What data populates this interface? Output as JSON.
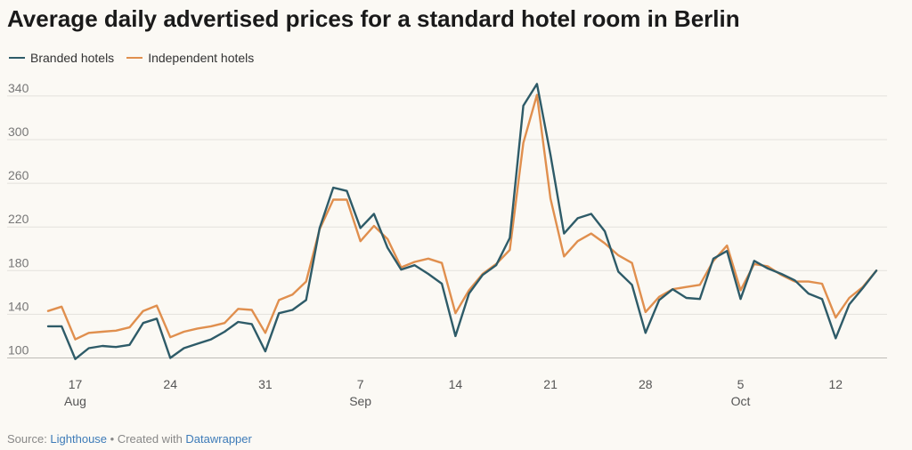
{
  "title": "Average daily advertised prices for a standard hotel room in Berlin",
  "footer": {
    "source_prefix": "Source: ",
    "source_link": "Lighthouse",
    "separator": " • Created with ",
    "tool_link": "Datawrapper"
  },
  "colors": {
    "branded": "#2e5b68",
    "independent": "#e08f4e",
    "grid": "#e3e1dc",
    "link": "#3d7bb8"
  },
  "chart_data": {
    "type": "line",
    "title": "Average daily advertised prices for a standard hotel room in Berlin",
    "xlabel": "",
    "ylabel": "",
    "x_start": "Aug 15",
    "x_end": "Oct 15",
    "ylim": [
      90,
      356
    ],
    "yticks": [
      100,
      140,
      180,
      220,
      260,
      300,
      340
    ],
    "grid": true,
    "legend_position": "top-left",
    "xticks": [
      {
        "label": "17",
        "month": "Aug",
        "index": 2
      },
      {
        "label": "24",
        "month": "",
        "index": 9
      },
      {
        "label": "31",
        "month": "",
        "index": 16
      },
      {
        "label": "7",
        "month": "Sep",
        "index": 23
      },
      {
        "label": "14",
        "month": "",
        "index": 30
      },
      {
        "label": "21",
        "month": "",
        "index": 37
      },
      {
        "label": "28",
        "month": "",
        "index": 44
      },
      {
        "label": "5",
        "month": "Oct",
        "index": 51
      },
      {
        "label": "12",
        "month": "",
        "index": 58
      }
    ],
    "series": [
      {
        "name": "Branded hotels",
        "color": "#2e5b68",
        "values": [
          129,
          129,
          99,
          109,
          111,
          110,
          112,
          132,
          136,
          100,
          109,
          113,
          117,
          124,
          133,
          131,
          106,
          141,
          144,
          153,
          219,
          256,
          253,
          219,
          232,
          201,
          181,
          185,
          177,
          168,
          120,
          159,
          176,
          185,
          210,
          331,
          351,
          286,
          214,
          228,
          232,
          216,
          179,
          167,
          123,
          153,
          163,
          155,
          154,
          191,
          198,
          154,
          189,
          182,
          177,
          171,
          159,
          154,
          118,
          149,
          164,
          180
        ]
      },
      {
        "name": "Independent hotels",
        "color": "#e08f4e",
        "values": [
          143,
          147,
          117,
          123,
          124,
          125,
          128,
          143,
          148,
          119,
          124,
          127,
          129,
          132,
          145,
          144,
          123,
          153,
          158,
          170,
          218,
          245,
          245,
          207,
          221,
          209,
          183,
          188,
          191,
          187,
          141,
          162,
          177,
          186,
          199,
          297,
          341,
          246,
          193,
          207,
          214,
          205,
          194,
          187,
          142,
          156,
          163,
          165,
          167,
          189,
          203,
          162,
          186,
          184,
          176,
          170,
          170,
          168,
          137,
          155,
          165,
          180
        ]
      }
    ]
  }
}
